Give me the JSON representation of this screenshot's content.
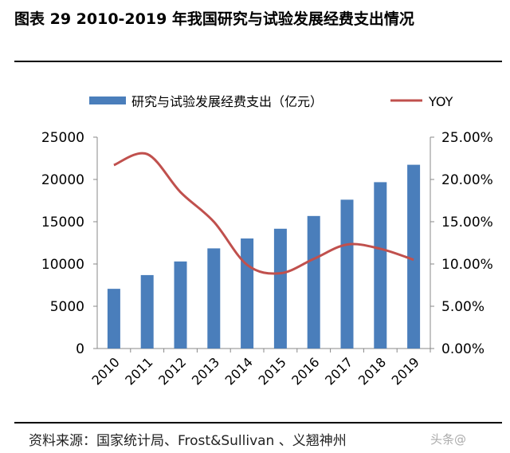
{
  "title": "图表 29  2010-2019 年我国研究与试验发展经费支出情况",
  "source": "资料来源：国家统计局、Frost&Sullivan 、义翘神州",
  "watermark": "头条@",
  "colors": {
    "bar": "#4a7ebb",
    "line": "#c0504d"
  },
  "chart_data": {
    "type": "bar+line",
    "categories": [
      "2010",
      "2011",
      "2012",
      "2013",
      "2014",
      "2015",
      "2016",
      "2017",
      "2018",
      "2019"
    ],
    "series": [
      {
        "name": "研究与试验发展经费支出（亿元）",
        "type": "bar",
        "axis": "left",
        "values": [
          7063,
          8687,
          10298,
          11847,
          13016,
          14170,
          15677,
          17606,
          19678,
          21737
        ]
      },
      {
        "name": "YOY",
        "type": "line",
        "axis": "right",
        "values": [
          21.7,
          23.0,
          18.5,
          15.0,
          9.9,
          8.9,
          10.6,
          12.3,
          11.8,
          10.5
        ]
      }
    ],
    "ylim": [
      0,
      25000
    ],
    "y2lim": [
      0,
      25
    ],
    "yticks": [
      "0",
      "5000",
      "10000",
      "15000",
      "20000",
      "25000"
    ],
    "y2ticks": [
      "0.00%",
      "5.00%",
      "10.00%",
      "15.00%",
      "20.00%",
      "25.00%"
    ],
    "legend": "top"
  }
}
